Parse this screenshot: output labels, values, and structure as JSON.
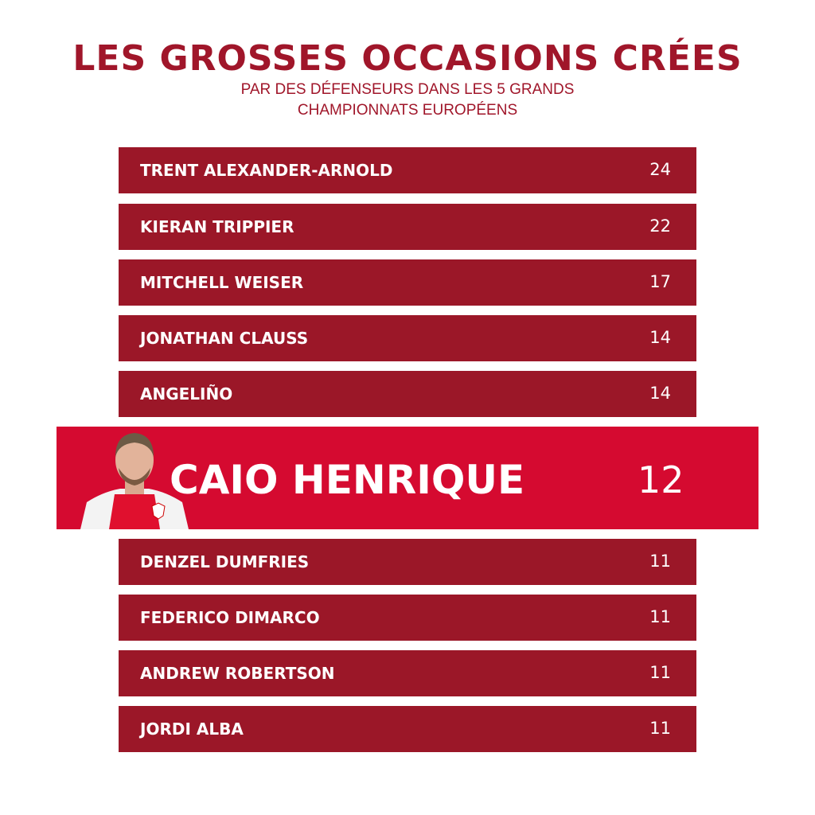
{
  "title": "LES GROSSES OCCASIONS CRÉES",
  "subtitle_line1": "PAR DES DÉFENSEURS DANS LES 5 GRANDS",
  "subtitle_line2": "CHAMPIONNATS EUROPÉENS",
  "colors": {
    "title": "#a0162a",
    "row": "#9b1728",
    "highlight": "#d50a30"
  },
  "chart_data": {
    "type": "table",
    "rows": [
      {
        "name": "TRENT ALEXANDER-ARNOLD",
        "value": "24"
      },
      {
        "name": "KIERAN TRIPPIER",
        "value": "22"
      },
      {
        "name": "MITCHELL WEISER",
        "value": "17"
      },
      {
        "name": "JONATHAN CLAUSS",
        "value": "14"
      },
      {
        "name": "ANGELIÑO",
        "value": "14"
      },
      {
        "name": "CAIO HENRIQUE",
        "value": "12",
        "highlighted": true
      },
      {
        "name": "DENZEL DUMFRIES",
        "value": "11"
      },
      {
        "name": "FEDERICO DIMARCO",
        "value": "11"
      },
      {
        "name": "ANDREW ROBERTSON",
        "value": "11"
      },
      {
        "name": "JORDI ALBA",
        "value": "11"
      }
    ]
  }
}
